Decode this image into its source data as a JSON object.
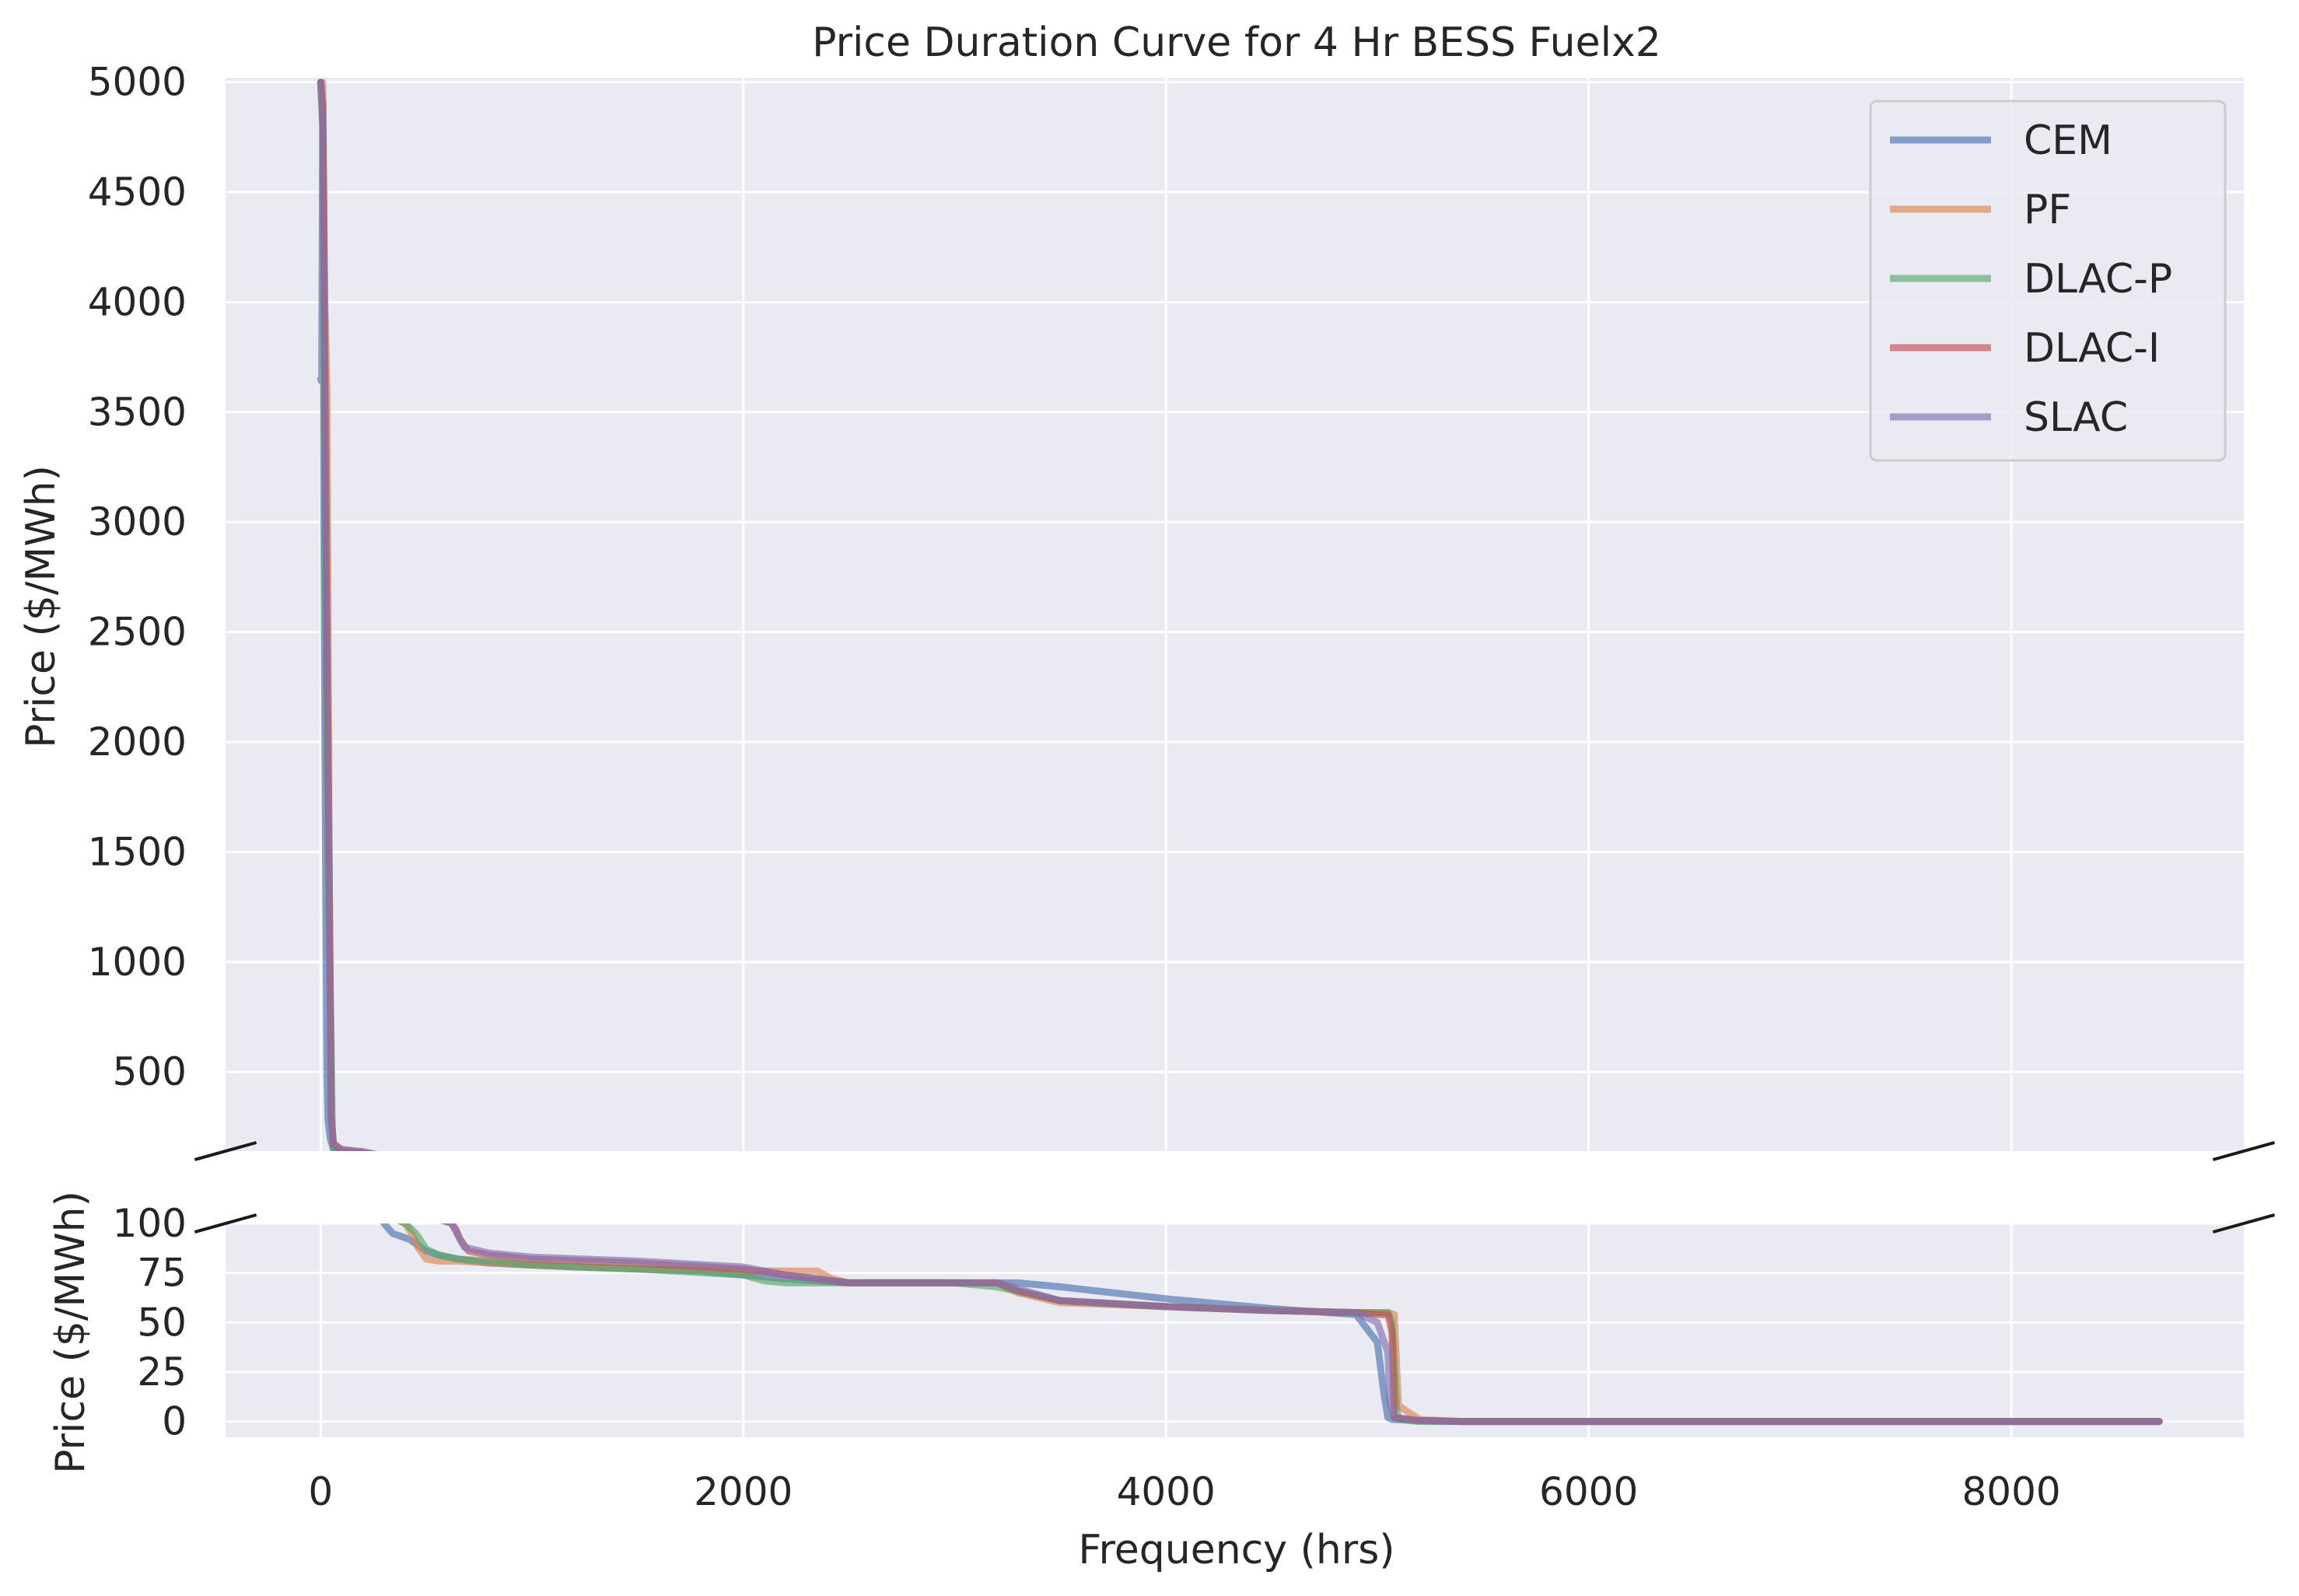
{
  "chart_data": {
    "type": "line",
    "title": "Price Duration Curve for 4 Hr BESS Fuelx2",
    "xlabel": "Frequency (hrs)",
    "ylabel_top": "Price ($/MWh)",
    "ylabel_bottom": "Price ($/MWh)",
    "xlim": [
      -450,
      9100
    ],
    "xticks": [
      0,
      2000,
      4000,
      6000,
      8000
    ],
    "broken_y_axis": true,
    "top_panel": {
      "ylim": [
        140,
        5020
      ],
      "yticks": [
        500,
        1000,
        1500,
        2000,
        2500,
        3000,
        3500,
        4000,
        4500,
        5000
      ]
    },
    "bottom_panel": {
      "ylim": [
        -8,
        100
      ],
      "yticks": [
        0,
        25,
        50,
        75,
        100
      ]
    },
    "grid": true,
    "legend_position": "top-right",
    "series": [
      {
        "name": "CEM",
        "color": "#4c72b0",
        "x": [
          0,
          5,
          10,
          15,
          20,
          25,
          30,
          35,
          45,
          60,
          100,
          200,
          280,
          300,
          340,
          420,
          500,
          560,
          650,
          800,
          1000,
          1200,
          1500,
          1800,
          2000,
          2200,
          2500,
          3000,
          3300,
          3500,
          4000,
          4500,
          4900,
          5000,
          5030,
          5050,
          5070,
          5100,
          5200,
          5400,
          6000,
          7000,
          8000,
          8700
        ],
        "y": [
          3650,
          3640,
          4900,
          3000,
          2000,
          1200,
          500,
          280,
          200,
          150,
          135,
          130,
          110,
          100,
          95,
          92,
          86,
          84,
          82,
          80,
          79,
          78,
          77,
          76,
          74,
          72,
          70,
          70,
          70,
          68,
          62,
          57,
          54,
          40,
          15,
          2,
          1,
          1,
          0.5,
          0,
          0,
          0,
          0,
          0
        ]
      },
      {
        "name": "PF",
        "color": "#dd8452",
        "x": [
          0,
          10,
          20,
          30,
          35,
          40,
          50,
          60,
          100,
          200,
          300,
          400,
          430,
          460,
          500,
          560,
          650,
          800,
          1000,
          1500,
          2000,
          2200,
          2350,
          2420,
          2500,
          3000,
          3200,
          3300,
          3500,
          4000,
          4500,
          4900,
          5050,
          5080,
          5100,
          5200,
          5400,
          6000,
          7000,
          8000,
          8700
        ],
        "y": [
          5000,
          5000,
          4000,
          3600,
          2600,
          1500,
          300,
          180,
          140,
          130,
          105,
          100,
          95,
          88,
          82,
          81,
          81,
          80,
          79,
          77,
          76,
          76,
          76,
          72,
          70,
          70,
          70,
          65,
          60,
          58,
          56,
          55,
          55,
          54,
          8,
          1,
          0,
          0,
          0,
          0,
          0
        ]
      },
      {
        "name": "DLAC-P",
        "color": "#55a868",
        "x": [
          0,
          10,
          20,
          30,
          40,
          50,
          55,
          60,
          70,
          100,
          200,
          300,
          400,
          450,
          500,
          560,
          650,
          800,
          1000,
          1500,
          2000,
          2100,
          2200,
          2500,
          3000,
          3200,
          3500,
          4000,
          4500,
          4900,
          5050,
          5070,
          5090,
          5100,
          5200,
          5400,
          6000,
          7000,
          8000,
          8700
        ],
        "y": [
          5000,
          4800,
          3000,
          2000,
          1200,
          600,
          250,
          150,
          130,
          125,
          120,
          105,
          100,
          95,
          87,
          84,
          82,
          81,
          79,
          77,
          74,
          71,
          70,
          70,
          70,
          68,
          61,
          58,
          56,
          55,
          55,
          50,
          8,
          1,
          0,
          0,
          0,
          0,
          0,
          0
        ]
      },
      {
        "name": "DLAC-I",
        "color": "#c44e52",
        "x": [
          0,
          10,
          20,
          30,
          40,
          50,
          60,
          100,
          200,
          300,
          500,
          620,
          640,
          660,
          700,
          800,
          1000,
          1500,
          2000,
          2200,
          2500,
          3000,
          3200,
          3300,
          3500,
          4000,
          4500,
          4900,
          5000,
          5050,
          5070,
          5080,
          5200,
          5400,
          6000,
          7000,
          8000,
          8700
        ],
        "y": [
          5000,
          4900,
          3800,
          2500,
          1500,
          300,
          170,
          145,
          135,
          118,
          105,
          100,
          97,
          92,
          86,
          84,
          82,
          80,
          77,
          74,
          70,
          70,
          70,
          66,
          61,
          58,
          56,
          55,
          54,
          54,
          45,
          2,
          0.5,
          0,
          0,
          0,
          0,
          0
        ]
      },
      {
        "name": "SLAC",
        "color": "#8172b3",
        "x": [
          0,
          10,
          20,
          30,
          40,
          50,
          60,
          100,
          200,
          300,
          500,
          620,
          650,
          680,
          800,
          1000,
          1500,
          2000,
          2200,
          2500,
          3000,
          3200,
          3500,
          4000,
          4500,
          4900,
          5000,
          5050,
          5060,
          5080,
          5200,
          5400,
          6000,
          7000,
          8000,
          8700
        ],
        "y": [
          5000,
          4800,
          3600,
          2400,
          1400,
          300,
          170,
          148,
          138,
          118,
          104,
          100,
          94,
          88,
          85,
          83,
          81,
          78,
          74,
          70,
          70,
          70,
          61,
          58,
          56,
          55,
          50,
          35,
          10,
          2,
          0.5,
          0,
          0,
          0,
          0,
          0
        ]
      }
    ]
  }
}
